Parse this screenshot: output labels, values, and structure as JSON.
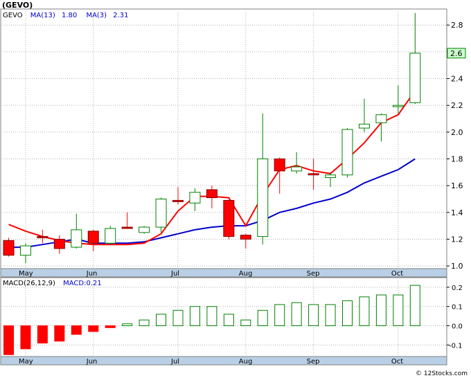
{
  "ticker_label": "(GEVO)",
  "legend": {
    "symbol": "GEVO",
    "ma13_label": "MA(13)",
    "ma13_value": "1.80",
    "ma3_label": "MA(3)",
    "ma3_value": "2.31"
  },
  "last_price_tag": "2.6",
  "macd_legend": {
    "label": "MACD(26,12,9)",
    "value_label": "MACD:0.21"
  },
  "watermark": "© 12Stocks.com",
  "colors": {
    "up": "#008000",
    "down": "#ff0000",
    "ma3": "#ff0000",
    "ma13": "#0000cc",
    "band": "#b9cfe5",
    "grid": "#b0b0b0"
  },
  "chart_data": [
    {
      "type": "candlestick",
      "title": "(GEVO)",
      "x_ticks": [
        "May",
        "Jun",
        "Jul",
        "Aug",
        "Sep",
        "Oct"
      ],
      "x_tick_index": [
        1,
        5,
        10,
        14,
        18,
        23
      ],
      "y_ticks": [
        1.0,
        1.2,
        1.4,
        1.6,
        1.8,
        2.0,
        2.2,
        2.4,
        2.6,
        2.8
      ],
      "ylim": [
        0.98,
        2.92
      ],
      "grid": true,
      "candles": [
        {
          "o": 1.19,
          "h": 1.21,
          "l": 1.07,
          "c": 1.08
        },
        {
          "o": 1.08,
          "h": 1.17,
          "l": 1.02,
          "c": 1.15
        },
        {
          "o": 1.22,
          "h": 1.27,
          "l": 1.17,
          "c": 1.21
        },
        {
          "o": 1.2,
          "h": 1.23,
          "l": 1.09,
          "c": 1.13
        },
        {
          "o": 1.14,
          "h": 1.39,
          "l": 1.13,
          "c": 1.27
        },
        {
          "o": 1.26,
          "h": 1.27,
          "l": 1.11,
          "c": 1.17
        },
        {
          "o": 1.17,
          "h": 1.3,
          "l": 1.16,
          "c": 1.28
        },
        {
          "o": 1.29,
          "h": 1.4,
          "l": 1.28,
          "c": 1.28
        },
        {
          "o": 1.25,
          "h": 1.3,
          "l": 1.24,
          "c": 1.29
        },
        {
          "o": 1.29,
          "h": 1.51,
          "l": 1.25,
          "c": 1.5
        },
        {
          "o": 1.49,
          "h": 1.59,
          "l": 1.46,
          "c": 1.48
        },
        {
          "o": 1.47,
          "h": 1.58,
          "l": 1.41,
          "c": 1.55
        },
        {
          "o": 1.57,
          "h": 1.6,
          "l": 1.43,
          "c": 1.51
        },
        {
          "o": 1.49,
          "h": 1.49,
          "l": 1.2,
          "c": 1.22
        },
        {
          "o": 1.23,
          "h": 1.24,
          "l": 1.13,
          "c": 1.2
        },
        {
          "o": 1.22,
          "h": 2.14,
          "l": 1.16,
          "c": 1.8
        },
        {
          "o": 1.8,
          "h": 1.81,
          "l": 1.54,
          "c": 1.71
        },
        {
          "o": 1.71,
          "h": 1.85,
          "l": 1.69,
          "c": 1.74
        },
        {
          "o": 1.69,
          "h": 1.8,
          "l": 1.57,
          "c": 1.68
        },
        {
          "o": 1.66,
          "h": 1.7,
          "l": 1.59,
          "c": 1.68
        },
        {
          "o": 1.68,
          "h": 2.03,
          "l": 1.66,
          "c": 2.02
        },
        {
          "o": 2.03,
          "h": 2.25,
          "l": 2.0,
          "c": 2.06
        },
        {
          "o": 2.07,
          "h": 2.14,
          "l": 1.93,
          "c": 2.13
        },
        {
          "o": 2.19,
          "h": 2.35,
          "l": 2.14,
          "c": 2.2
        },
        {
          "o": 2.22,
          "h": 2.89,
          "l": 2.21,
          "c": 2.59
        }
      ],
      "series": [
        {
          "name": "MA(13)",
          "start_index": 0,
          "values": [
            1.14,
            1.14,
            1.16,
            1.18,
            1.2,
            1.17,
            1.17,
            1.17,
            1.18,
            1.21,
            1.24,
            1.27,
            1.29,
            1.3,
            1.3,
            1.34,
            1.4,
            1.43,
            1.47,
            1.5,
            1.55,
            1.62,
            1.67,
            1.72,
            1.8
          ]
        },
        {
          "name": "MA(3)",
          "start_index": 0,
          "values": [
            1.31,
            1.26,
            1.22,
            1.19,
            1.17,
            1.16,
            1.16,
            1.16,
            1.17,
            1.24,
            1.41,
            1.52,
            1.52,
            1.51,
            1.3,
            1.53,
            1.72,
            1.75,
            1.71,
            1.69,
            1.8,
            1.92,
            2.07,
            2.13,
            2.31
          ]
        }
      ]
    },
    {
      "type": "bar",
      "title": "MACD(26,12,9)",
      "y_ticks": [
        0.2,
        0.1,
        0.0,
        -0.1
      ],
      "ylim": [
        -0.16,
        0.25
      ],
      "values": [
        -0.15,
        -0.12,
        -0.09,
        -0.08,
        -0.045,
        -0.03,
        -0.01,
        0.01,
        0.03,
        0.06,
        0.08,
        0.1,
        0.1,
        0.06,
        0.03,
        0.08,
        0.11,
        0.12,
        0.11,
        0.11,
        0.13,
        0.15,
        0.16,
        0.16,
        0.21
      ]
    }
  ]
}
